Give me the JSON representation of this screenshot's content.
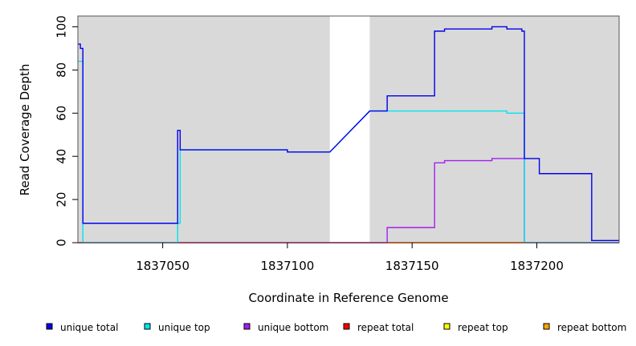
{
  "chart_data": {
    "type": "line",
    "xlabel": "Coordinate in Reference Genome",
    "ylabel": "Read Coverage Depth",
    "xlim": [
      1837016,
      1837233
    ],
    "ylim": [
      0,
      105
    ],
    "x_ticks": [
      1837050,
      1837100,
      1837150,
      1837200
    ],
    "y_ticks": [
      0,
      20,
      40,
      60,
      80,
      100
    ],
    "grid": false,
    "legend_position": "bottom",
    "shaded_regions": [
      [
        1837016,
        1837117
      ],
      [
        1837133,
        1837233
      ]
    ],
    "series": [
      {
        "name": "unique total",
        "color": "#0000ee",
        "points": [
          [
            1837016,
            92
          ],
          [
            1837017,
            92
          ],
          [
            1837017,
            90
          ],
          [
            1837018,
            90
          ],
          [
            1837018,
            9
          ],
          [
            1837056,
            9
          ],
          [
            1837056,
            52
          ],
          [
            1837057,
            52
          ],
          [
            1837057,
            43
          ],
          [
            1837100,
            43
          ],
          [
            1837100,
            42
          ],
          [
            1837117,
            42
          ],
          [
            1837133,
            61
          ],
          [
            1837140,
            61
          ],
          [
            1837140,
            68
          ],
          [
            1837159,
            68
          ],
          [
            1837159,
            98
          ],
          [
            1837163,
            98
          ],
          [
            1837163,
            99
          ],
          [
            1837182,
            99
          ],
          [
            1837182,
            100
          ],
          [
            1837188,
            100
          ],
          [
            1837188,
            99
          ],
          [
            1837194,
            99
          ],
          [
            1837194,
            98
          ],
          [
            1837195,
            98
          ],
          [
            1837195,
            39
          ],
          [
            1837201,
            39
          ],
          [
            1837201,
            32
          ],
          [
            1837222,
            32
          ],
          [
            1837222,
            1
          ],
          [
            1837233,
            1
          ]
        ]
      },
      {
        "name": "unique top",
        "color": "#00e5ee",
        "points": [
          [
            1837016,
            84
          ],
          [
            1837018,
            84
          ],
          [
            1837018,
            0
          ],
          [
            1837056,
            0
          ],
          [
            1837056,
            9
          ],
          [
            1837057,
            9
          ],
          [
            1837057,
            43
          ],
          [
            1837100,
            43
          ],
          [
            1837100,
            42
          ],
          [
            1837117,
            42
          ],
          [
            1837133,
            61
          ],
          [
            1837188,
            61
          ],
          [
            1837188,
            60
          ],
          [
            1837195,
            60
          ],
          [
            1837195,
            0
          ],
          [
            1837233,
            0
          ]
        ]
      },
      {
        "name": "unique bottom",
        "color": "#a020f0",
        "points": [
          [
            1837016,
            0
          ],
          [
            1837140,
            0
          ],
          [
            1837140,
            7
          ],
          [
            1837159,
            7
          ],
          [
            1837159,
            37
          ],
          [
            1837163,
            37
          ],
          [
            1837163,
            38
          ],
          [
            1837182,
            38
          ],
          [
            1837182,
            39
          ],
          [
            1837195,
            39
          ],
          [
            1837195,
            0
          ],
          [
            1837233,
            0
          ]
        ]
      },
      {
        "name": "repeat total",
        "color": "#ff0000",
        "points": [
          [
            1837016,
            0
          ],
          [
            1837233,
            0
          ]
        ]
      },
      {
        "name": "repeat top",
        "color": "#ffff00",
        "points": [
          [
            1837016,
            0
          ],
          [
            1837233,
            0
          ]
        ]
      },
      {
        "name": "repeat bottom",
        "color": "#ffa500",
        "points": [
          [
            1837016,
            0
          ],
          [
            1837233,
            0
          ]
        ]
      }
    ]
  }
}
